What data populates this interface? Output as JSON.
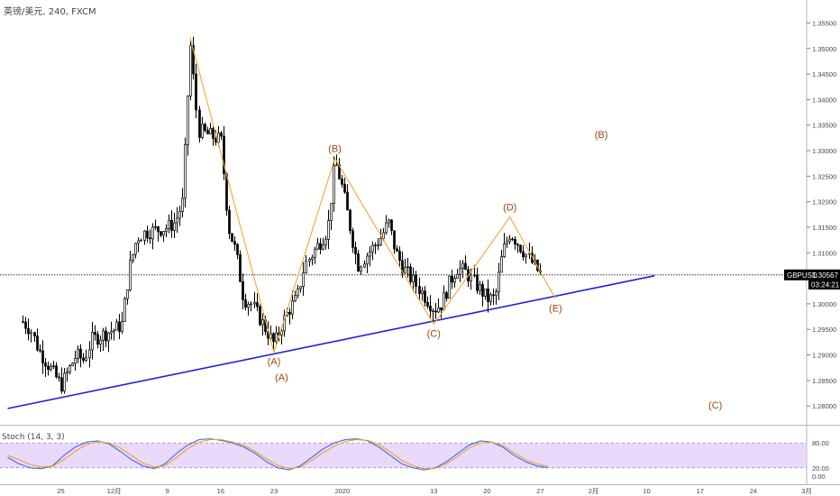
{
  "header": {
    "symbol_title": "英镑/美元, 240, FXCM",
    "stoch_title": "Stoch (14, 3, 3)"
  },
  "price_tag": {
    "symbol": "GBPUSD",
    "price": "1.30567",
    "countdown": "03:24:21"
  },
  "colors": {
    "wave": "#f2a634",
    "wave_label": "#a0460a",
    "trendline": "#2020d8",
    "candle": "#000000",
    "stoch_k": "#2962ff",
    "stoch_d": "#ff9800",
    "stoch_band": "#e1ccfa"
  },
  "chart_data": [
    {
      "type": "candlestick",
      "title": "英镑/美元, 240, FXCM",
      "ylim": [
        1.2765,
        1.3595
      ],
      "y_ticks": [
        "1.28000",
        "1.28500",
        "1.29000",
        "1.29500",
        "1.30000",
        "1.30500",
        "1.31000",
        "1.31500",
        "1.32000",
        "1.32500",
        "1.33000",
        "1.33500",
        "1.34000",
        "1.34500",
        "1.35000",
        "1.35500"
      ],
      "x_ticks": [
        "25",
        "12月",
        "9",
        "16",
        "23",
        "2020",
        "13",
        "20",
        "27",
        "2月",
        "10",
        "17",
        "24",
        "3月"
      ],
      "last_price": 1.30567,
      "price_path": [
        [
          "2019-11-20",
          1.2965
        ],
        [
          "2019-11-21",
          1.295
        ],
        [
          "2019-11-22",
          1.291
        ],
        [
          "2019-11-25",
          1.284
        ],
        [
          "2019-11-26",
          1.287
        ],
        [
          "2019-11-27",
          1.29
        ],
        [
          "2019-11-28",
          1.289
        ],
        [
          "2019-11-29",
          1.293
        ],
        [
          "2019-12-02",
          1.295
        ],
        [
          "2019-12-03",
          1.296
        ],
        [
          "2019-12-04",
          1.307
        ],
        [
          "2019-12-05",
          1.313
        ],
        [
          "2019-12-06",
          1.314
        ],
        [
          "2019-12-09",
          1.315
        ],
        [
          "2019-12-10",
          1.316
        ],
        [
          "2019-12-11",
          1.32
        ],
        [
          "2019-12-12",
          1.351
        ],
        [
          "2019-12-13",
          1.334
        ],
        [
          "2019-12-16",
          1.332
        ],
        [
          "2019-12-17",
          1.315
        ],
        [
          "2019-12-18",
          1.31
        ],
        [
          "2019-12-19",
          1.301
        ],
        [
          "2019-12-20",
          1.3
        ],
        [
          "2019-12-23",
          1.292
        ],
        [
          "2019-12-24",
          1.296
        ],
        [
          "2019-12-25",
          1.299
        ],
        [
          "2019-12-26",
          1.301
        ],
        [
          "2019-12-27",
          1.3075
        ],
        [
          "2019-12-30",
          1.3145
        ],
        [
          "2019-12-31",
          1.328
        ],
        [
          "2020-01-01",
          1.3225
        ],
        [
          "2020-01-02",
          1.315
        ],
        [
          "2020-01-03",
          1.3075
        ],
        [
          "2020-01-06",
          1.313
        ],
        [
          "2020-01-07",
          1.316
        ],
        [
          "2020-01-08",
          1.31
        ],
        [
          "2020-01-09",
          1.307
        ],
        [
          "2020-01-10",
          1.305
        ],
        [
          "2020-01-13",
          1.299
        ],
        [
          "2020-01-14",
          1.3
        ],
        [
          "2020-01-15",
          1.304
        ],
        [
          "2020-01-16",
          1.307
        ],
        [
          "2020-01-17",
          1.3065
        ],
        [
          "2020-01-20",
          1.301
        ],
        [
          "2020-01-21",
          1.301
        ],
        [
          "2020-01-22",
          1.31
        ],
        [
          "2020-01-23",
          1.314
        ],
        [
          "2020-01-24",
          1.312
        ],
        [
          "2020-01-27",
          1.3056
        ]
      ],
      "wave_path": [
        {
          "x": "2019-12-12",
          "y": 1.352
        },
        {
          "x": "2019-12-23",
          "y": 1.2905,
          "label": "(A)"
        },
        {
          "x": "2019-12-31",
          "y": 1.3285,
          "label": "(B)"
        },
        {
          "x": "2020-01-13",
          "y": 1.296,
          "label": "(C)"
        },
        {
          "x": "2020-01-23",
          "y": 1.317,
          "label": "(D)"
        },
        {
          "x": "2020-01-29",
          "y": 1.301,
          "label": "(E)"
        }
      ],
      "projection_labels": [
        {
          "x": "2019-12-24",
          "y": 1.285,
          "label": "(A)"
        },
        {
          "x": "2020-02-04",
          "y": 1.3325,
          "label": "(B)"
        },
        {
          "x": "2020-02-19",
          "y": 1.2795,
          "label": "(C)"
        }
      ],
      "trendline": [
        {
          "x": "2019-11-18",
          "y": 1.2795
        },
        {
          "x": "2020-02-11",
          "y": 1.3055
        }
      ]
    },
    {
      "type": "line",
      "title": "Stoch (14, 3, 3)",
      "ylim": [
        0,
        100
      ],
      "y_ticks": [
        "80.00",
        "20.00",
        "0.00"
      ],
      "band": [
        20,
        80
      ],
      "series": [
        {
          "values": [
            45,
            30,
            20,
            18,
            25,
            50,
            70,
            82,
            85,
            78,
            60,
            40,
            25,
            18,
            30,
            55,
            75,
            88,
            90,
            86,
            80,
            70,
            55,
            35,
            20,
            15,
            25,
            45,
            65,
            80,
            88,
            90,
            85,
            70,
            50,
            30,
            20,
            15,
            20,
            35,
            55,
            75,
            85,
            82,
            70,
            50,
            35,
            25,
            20
          ]
        },
        {
          "values": [
            50,
            40,
            28,
            22,
            24,
            40,
            60,
            76,
            83,
            80,
            68,
            50,
            32,
            22,
            25,
            45,
            66,
            82,
            88,
            88,
            82,
            74,
            60,
            42,
            26,
            18,
            22,
            38,
            56,
            72,
            84,
            88,
            86,
            76,
            58,
            38,
            25,
            18,
            19,
            30,
            48,
            68,
            80,
            82,
            74,
            56,
            40,
            30,
            24
          ]
        }
      ]
    }
  ]
}
